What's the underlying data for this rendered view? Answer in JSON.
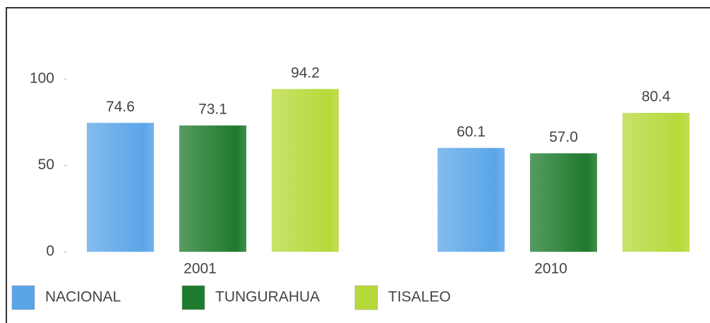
{
  "chart_data": {
    "type": "bar",
    "categories": [
      "2001",
      "2010"
    ],
    "series": [
      {
        "name": "NACIONAL",
        "color": "#5aa5e8",
        "values": [
          74.6,
          60.1
        ],
        "value_labels": [
          "74.6",
          "60.1"
        ]
      },
      {
        "name": "TUNGURAHUA",
        "color": "#1e7a2c",
        "values": [
          73.1,
          57.0
        ],
        "value_labels": [
          "73.1",
          "57.0"
        ]
      },
      {
        "name": "TISALEO",
        "color": "#b6d93a",
        "values": [
          94.2,
          80.4
        ],
        "value_labels": [
          "94.2",
          "80.4"
        ]
      }
    ],
    "ylim": [
      0,
      100
    ],
    "yticks": [
      0,
      50,
      100
    ],
    "grid": false,
    "legend": "bottom"
  }
}
